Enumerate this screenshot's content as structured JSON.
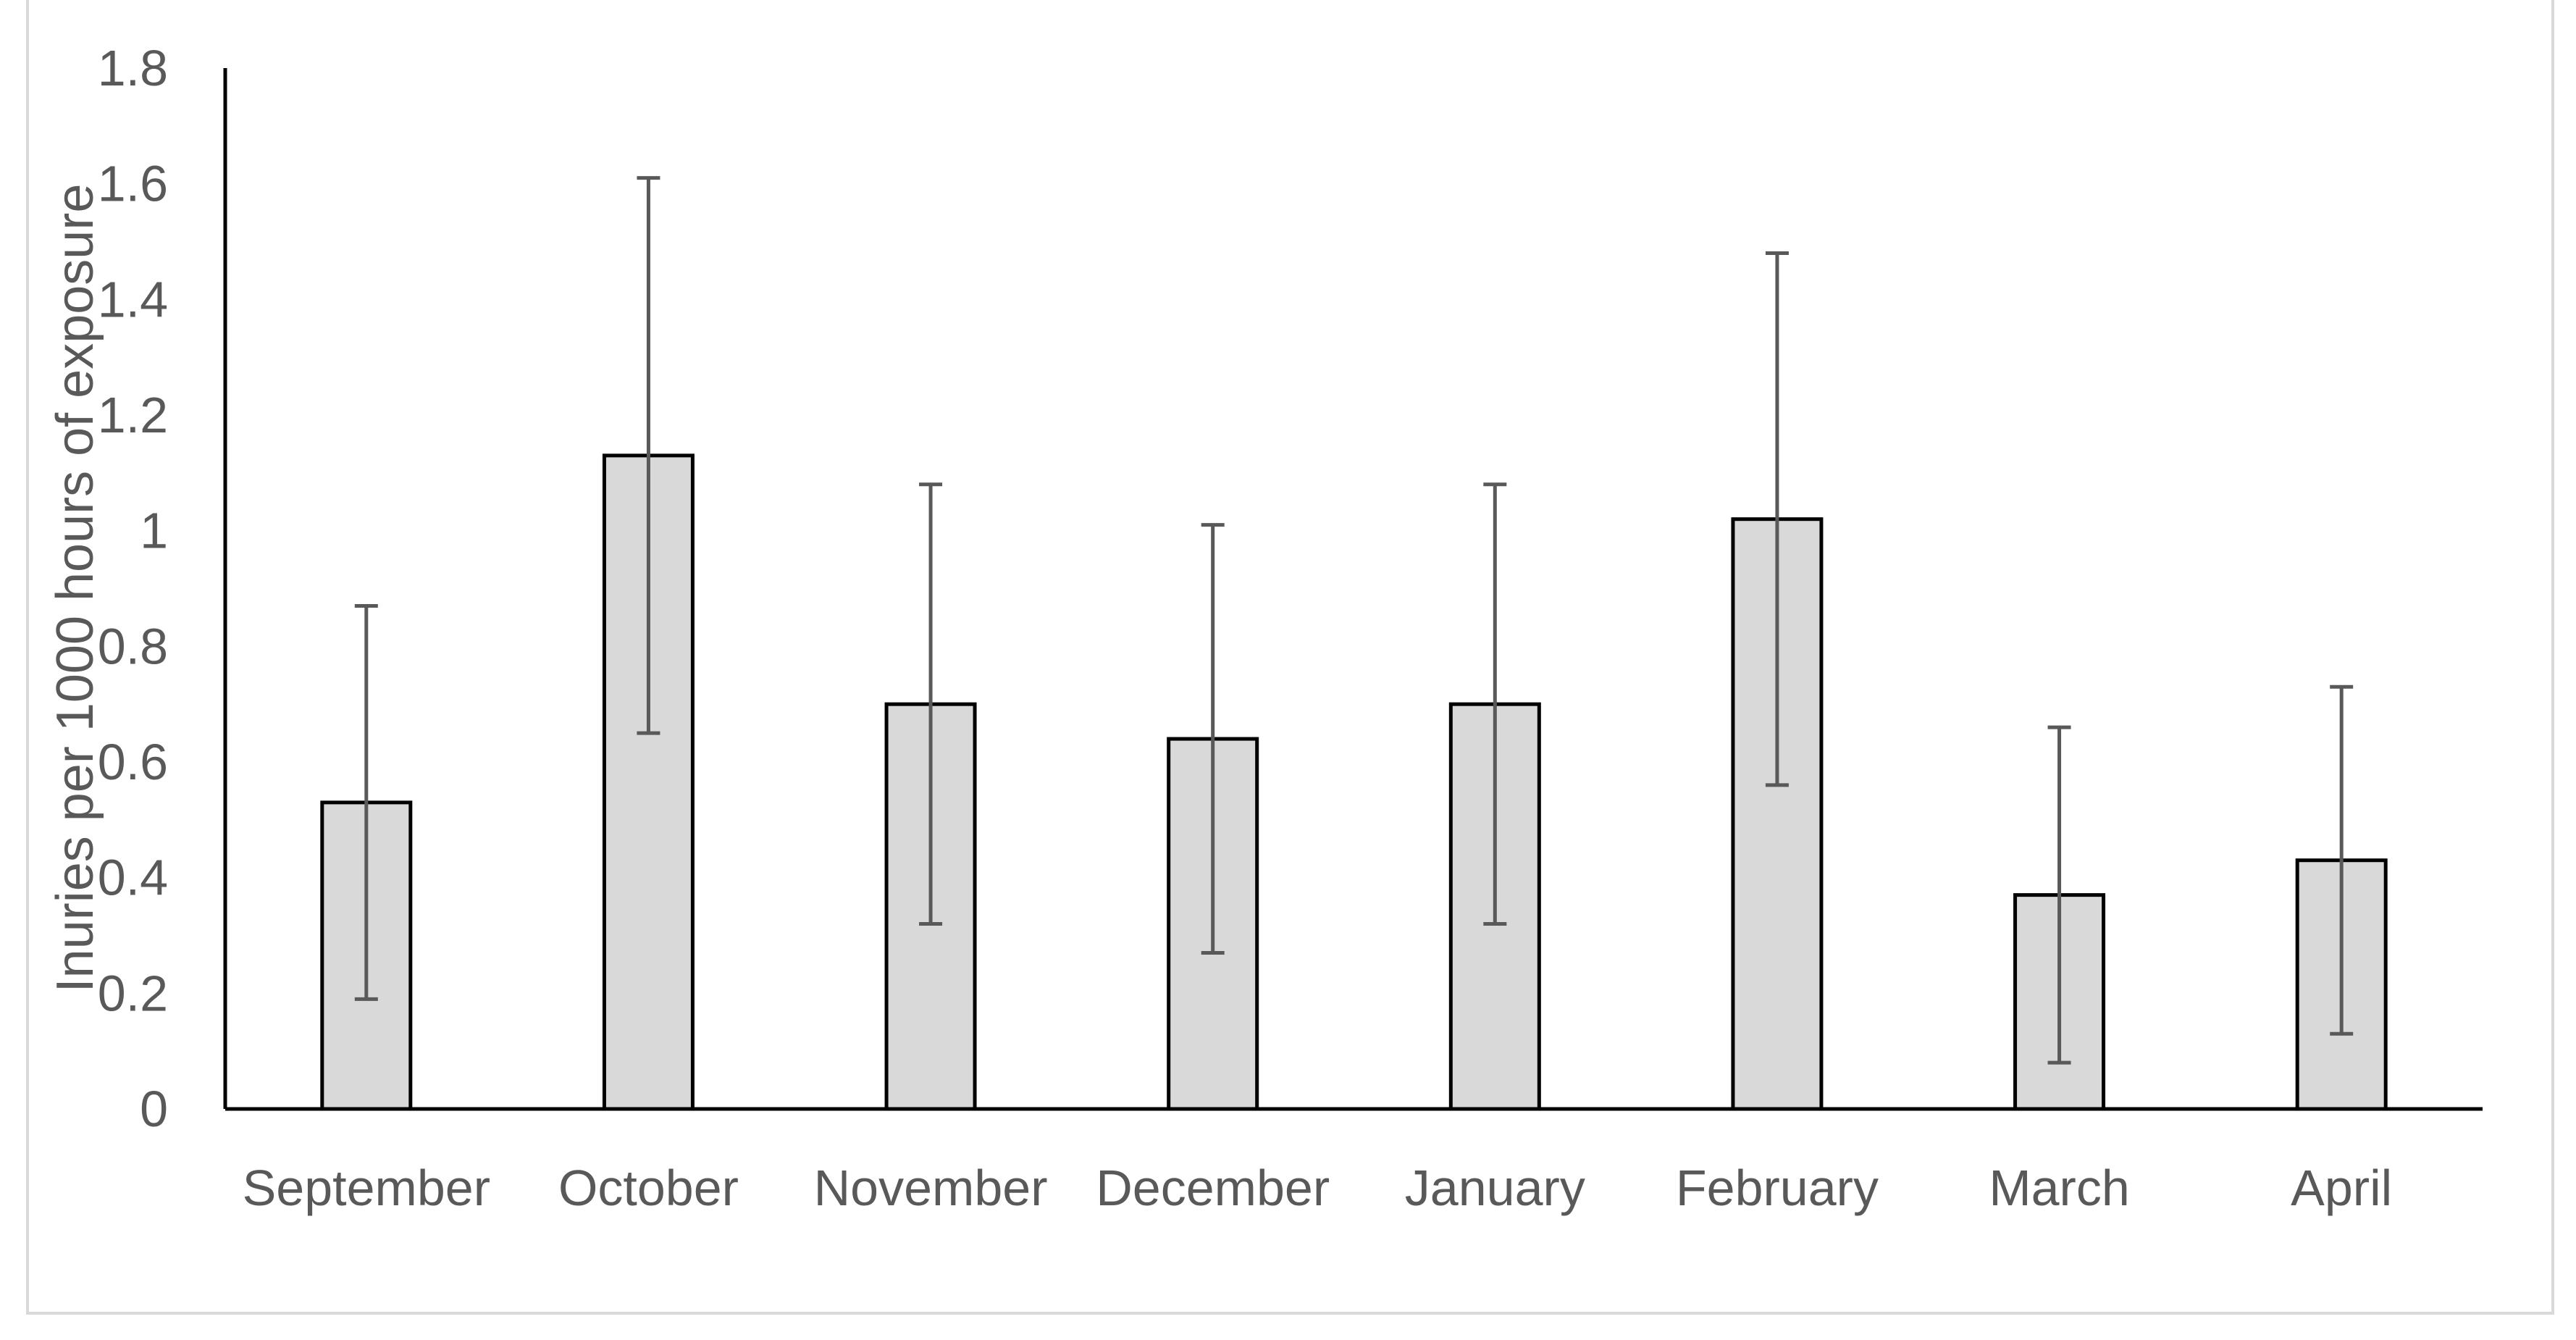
{
  "chart_data": {
    "type": "bar",
    "title": "",
    "xlabel": "",
    "ylabel": "Inuries per 1000 hours of exposure",
    "categories": [
      "September",
      "October",
      "November",
      "December",
      "January",
      "February",
      "March",
      "April"
    ],
    "values": [
      0.53,
      1.13,
      0.7,
      0.64,
      0.7,
      1.02,
      0.37,
      0.43
    ],
    "error_low": [
      0.19,
      0.65,
      0.32,
      0.27,
      0.32,
      0.56,
      0.08,
      0.13
    ],
    "error_high": [
      0.87,
      1.61,
      1.08,
      1.01,
      1.08,
      1.48,
      0.66,
      0.73
    ],
    "ylim": [
      0,
      1.8
    ],
    "yticks": [
      "0",
      "0.2",
      "0.4",
      "0.6",
      "0.8",
      "1",
      "1.2",
      "1.4",
      "1.6",
      "1.8"
    ],
    "grid": false,
    "legend": "none",
    "colors": {
      "bar_fill": "#d9d9d9",
      "bar_stroke": "#000000",
      "error_bar": "#595959",
      "axis": "#000000",
      "text": "#595959"
    }
  }
}
